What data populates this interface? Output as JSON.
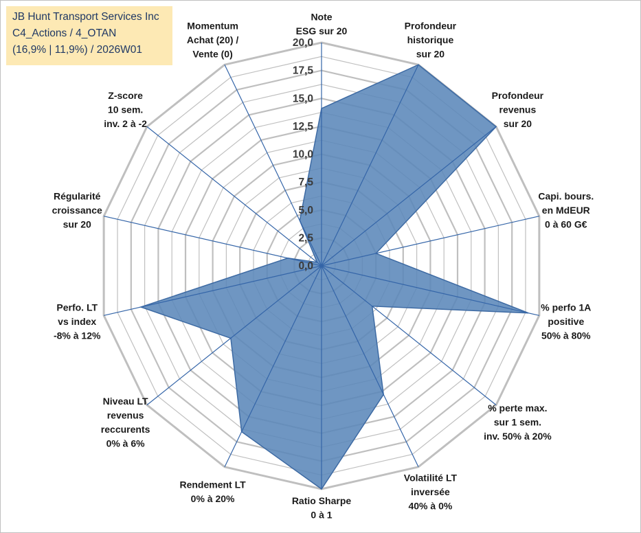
{
  "info_box": {
    "line1": "JB Hunt Transport Services Inc",
    "line2": "C4_Actions / 4_OTAN",
    "line3": "(16,9% | 11,9%) / 2026W01"
  },
  "colors": {
    "fill": "#5b87ba",
    "fill_stroke": "#3d6aa3",
    "grid": "#bfbfbf",
    "spokes": "#3465a8",
    "info_bg": "#fde9b4",
    "info_text": "#1f3864"
  },
  "chart_data": {
    "type": "radar",
    "title": "",
    "range": [
      0,
      20
    ],
    "tick_step": 2.5,
    "tick_labels": [
      "0,0",
      "2,5",
      "5,0",
      "7,5",
      "10,0",
      "12,5",
      "15,0",
      "17,5",
      "20,0"
    ],
    "gridlines": true,
    "axes": [
      {
        "label": [
          "Note",
          "ESG sur 20"
        ],
        "value": 14.1
      },
      {
        "label": [
          "Profondeur",
          "historique",
          "sur 20"
        ],
        "value": 20.0
      },
      {
        "label": [
          "Profondeur",
          "revenus",
          "sur 20"
        ],
        "value": 20.0
      },
      {
        "label": [
          "Capi. bours.",
          "en MdEUR",
          "0 à 60 G€"
        ],
        "value": 5.0
      },
      {
        "label": [
          "% perfo 1A",
          "positive",
          "50% à 80%"
        ],
        "value": 19.0
      },
      {
        "label": [
          "% perte max.",
          "sur 1 sem.",
          "inv. 50% à 20%"
        ],
        "value": 5.8
      },
      {
        "label": [
          "Volatilité LT",
          "inversée",
          "40% à 0%"
        ],
        "value": 12.8
      },
      {
        "label": [
          "Ratio Sharpe",
          "0 à 1"
        ],
        "value": 20.0
      },
      {
        "label": [
          "Rendement LT",
          "0% à 20%"
        ],
        "value": 16.5
      },
      {
        "label": [
          "Niveau LT",
          "revenus",
          "reccurents",
          "0% à 6%"
        ],
        "value": 10.4
      },
      {
        "label": [
          "Perfo. LT",
          "vs index",
          "-8% à 12%"
        ],
        "value": 16.6
      },
      {
        "label": [
          "Régularité",
          "croissance",
          "sur 20"
        ],
        "value": 3.1
      },
      {
        "label": [
          "Z-score",
          "10 sem.",
          "inv. 2 à -2"
        ],
        "value": 0.5
      },
      {
        "label": [
          "Momentum",
          "Achat (20) /",
          "Vente (0)"
        ],
        "value": 4.5
      }
    ]
  }
}
